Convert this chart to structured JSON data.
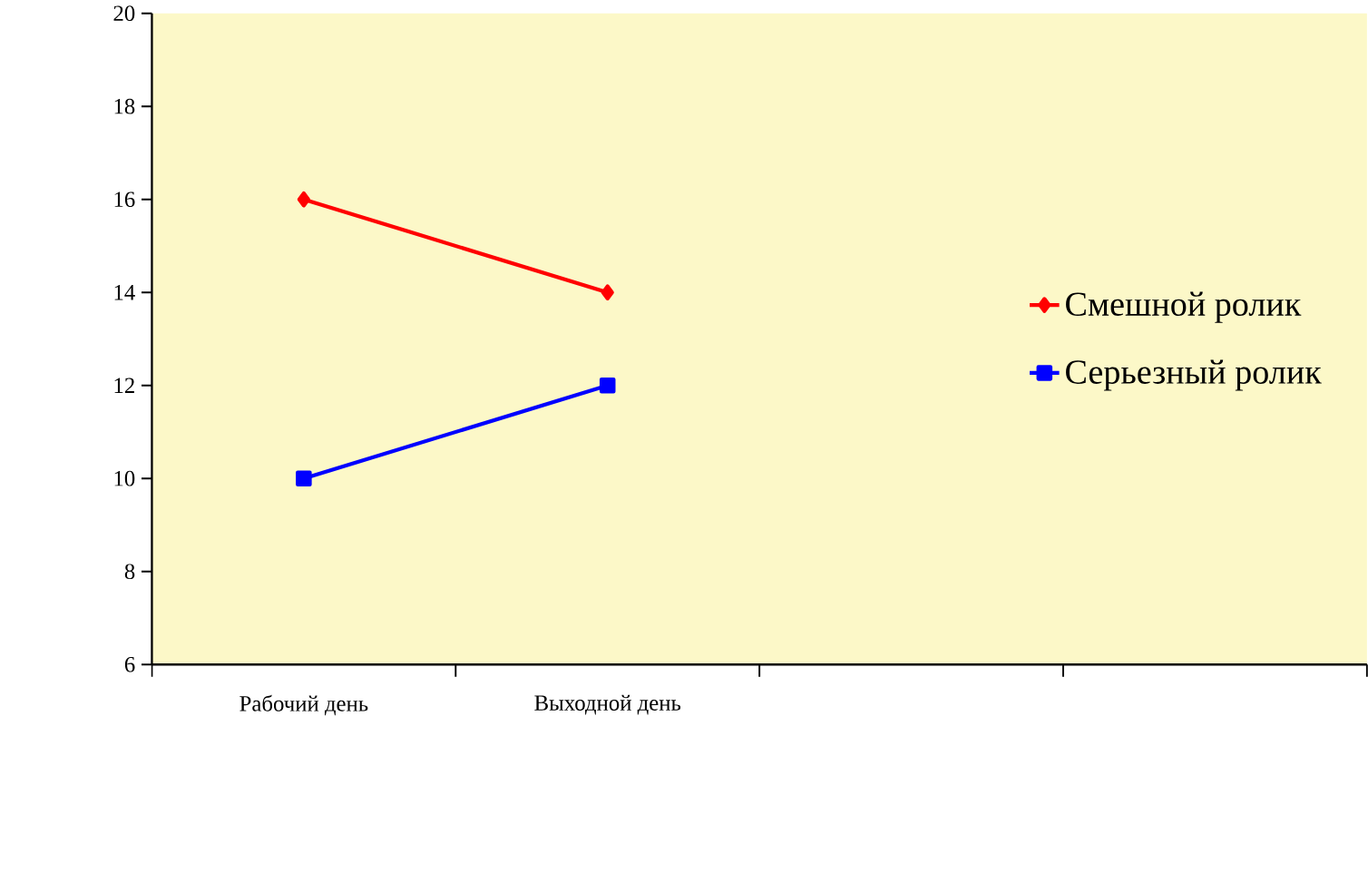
{
  "chart_data": {
    "type": "line",
    "categories": [
      "Рабочий день",
      "Выходной день",
      null,
      null
    ],
    "series": [
      {
        "name": "Смешной ролик",
        "color": "#ff0000",
        "marker": "diamond",
        "values": [
          16,
          14,
          null,
          null
        ]
      },
      {
        "name": "Серьезный ролик",
        "color": "#0000ff",
        "marker": "square",
        "values": [
          10,
          12,
          null,
          null
        ]
      }
    ],
    "ylim": [
      6,
      20
    ],
    "yticks": [
      6,
      8,
      10,
      12,
      14,
      16,
      18,
      20
    ],
    "grid": false,
    "legend": "right",
    "line_style": "solid"
  }
}
